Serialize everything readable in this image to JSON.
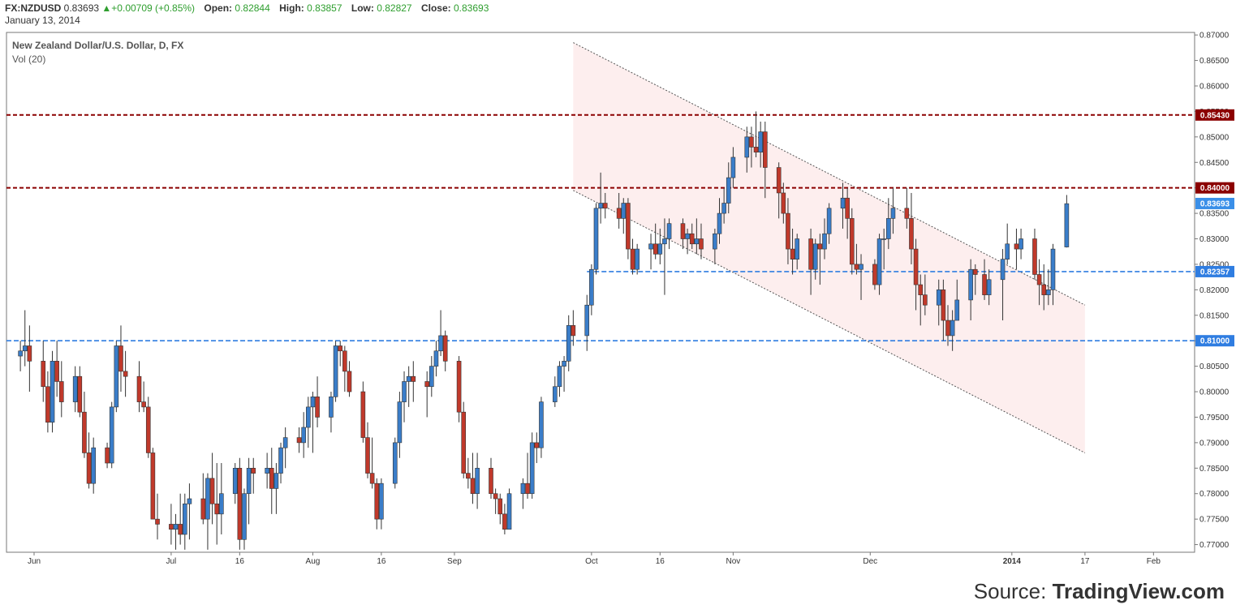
{
  "header": {
    "symbol": "FX:NZDUSD",
    "price": "0.83693",
    "change": "+0.00709 (+0.85%)",
    "open_label": "Open:",
    "open_value": "0.82844",
    "high_label": "High:",
    "high_value": "0.83857",
    "low_label": "Low:",
    "low_value": "0.82827",
    "close_label": "Close:",
    "close_value": "0.83693",
    "date": "January 13, 2014"
  },
  "source": {
    "prefix": "Source: ",
    "brand": "TradingView.com"
  },
  "colors": {
    "up": "#3a7dc9",
    "down": "#c0392b",
    "resistance": "#8b0000",
    "support": "#2f7de1",
    "price_badge": "#3a8fe8",
    "channel_fill": "#fdeeee"
  },
  "chart_data": {
    "type": "candlestick",
    "title": "New Zealand Dollar/U.S. Dollar, D, FX",
    "subtitle": "Vol (20)",
    "ylim": [
      0.7685,
      0.8705
    ],
    "yticks": [
      "0.87000",
      "0.86500",
      "0.86000",
      "0.85500",
      "0.85000",
      "0.84500",
      "0.84000",
      "0.83500",
      "0.83000",
      "0.82500",
      "0.82000",
      "0.81500",
      "0.81000",
      "0.80500",
      "0.80000",
      "0.79500",
      "0.79000",
      "0.78500",
      "0.78000",
      "0.77500",
      "0.77000"
    ],
    "xticks": [
      {
        "label": "Jun",
        "date": "2013-06-01",
        "bold": false
      },
      {
        "label": "Jul",
        "date": "2013-07-01",
        "bold": false
      },
      {
        "label": "16",
        "date": "2013-07-16",
        "bold": false
      },
      {
        "label": "Aug",
        "date": "2013-08-01",
        "bold": false
      },
      {
        "label": "16",
        "date": "2013-08-16",
        "bold": false
      },
      {
        "label": "Sep",
        "date": "2013-09-01",
        "bold": false
      },
      {
        "label": "Oct",
        "date": "2013-10-01",
        "bold": false
      },
      {
        "label": "16",
        "date": "2013-10-16",
        "bold": false
      },
      {
        "label": "Nov",
        "date": "2013-11-01",
        "bold": false
      },
      {
        "label": "Dec",
        "date": "2013-12-01",
        "bold": false
      },
      {
        "label": "2014",
        "date": "2014-01-01",
        "bold": true
      },
      {
        "label": "17",
        "date": "2014-01-17",
        "bold": false
      },
      {
        "label": "Feb",
        "date": "2014-02-01",
        "bold": false
      }
    ],
    "horizontal_levels": [
      {
        "value": 0.8543,
        "label": "0.85430",
        "kind": "resistance"
      },
      {
        "value": 0.84,
        "label": "0.84000",
        "kind": "resistance"
      },
      {
        "value": 0.82357,
        "label": "0.82357",
        "kind": "support",
        "from": "2013-09-30"
      },
      {
        "value": 0.81,
        "label": "0.81000",
        "kind": "support"
      }
    ],
    "last_price": {
      "value": 0.83693,
      "label": "0.83693"
    },
    "channel": {
      "upper": [
        [
          "2013-09-27",
          0.8685
        ],
        [
          "2014-01-17",
          0.817
        ]
      ],
      "lower": [
        [
          "2013-09-27",
          0.8395
        ],
        [
          "2014-01-17",
          0.788
        ]
      ]
    },
    "candles": [
      [
        "2013-05-29",
        0.807,
        0.81,
        0.804,
        0.808
      ],
      [
        "2013-05-30",
        0.808,
        0.816,
        0.805,
        0.809
      ],
      [
        "2013-05-31",
        0.809,
        0.813,
        0.8,
        0.806
      ],
      [
        "2013-06-03",
        0.806,
        0.81,
        0.798,
        0.801
      ],
      [
        "2013-06-04",
        0.801,
        0.804,
        0.792,
        0.794
      ],
      [
        "2013-06-05",
        0.794,
        0.808,
        0.792,
        0.806
      ],
      [
        "2013-06-06",
        0.806,
        0.81,
        0.799,
        0.802
      ],
      [
        "2013-06-07",
        0.802,
        0.806,
        0.795,
        0.798
      ],
      [
        "2013-06-10",
        0.798,
        0.805,
        0.796,
        0.803
      ],
      [
        "2013-06-11",
        0.803,
        0.805,
        0.795,
        0.796
      ],
      [
        "2013-06-12",
        0.796,
        0.8,
        0.787,
        0.788
      ],
      [
        "2013-06-13",
        0.788,
        0.792,
        0.781,
        0.782
      ],
      [
        "2013-06-14",
        0.782,
        0.791,
        0.78,
        0.789
      ],
      [
        "2013-06-17",
        0.789,
        0.79,
        0.785,
        0.786
      ],
      [
        "2013-06-18",
        0.786,
        0.798,
        0.785,
        0.797
      ],
      [
        "2013-06-19",
        0.797,
        0.81,
        0.796,
        0.809
      ],
      [
        "2013-06-20",
        0.809,
        0.813,
        0.8,
        0.804
      ],
      [
        "2013-06-21",
        0.804,
        0.808,
        0.799,
        0.803
      ],
      [
        "2013-06-24",
        0.803,
        0.806,
        0.796,
        0.798
      ],
      [
        "2013-06-25",
        0.798,
        0.802,
        0.796,
        0.797
      ],
      [
        "2013-06-26",
        0.797,
        0.799,
        0.787,
        0.788
      ],
      [
        "2013-06-27",
        0.788,
        0.789,
        0.775,
        0.775
      ],
      [
        "2013-06-28",
        0.775,
        0.78,
        0.771,
        0.774
      ],
      [
        "2013-07-01",
        0.774,
        0.778,
        0.77,
        0.773
      ],
      [
        "2013-07-02",
        0.773,
        0.776,
        0.769,
        0.774
      ],
      [
        "2013-07-03",
        0.774,
        0.78,
        0.77,
        0.772
      ],
      [
        "2013-07-04",
        0.772,
        0.78,
        0.769,
        0.778
      ],
      [
        "2013-07-05",
        0.778,
        0.782,
        0.771,
        0.779
      ],
      [
        "2013-07-08",
        0.779,
        0.784,
        0.774,
        0.775
      ],
      [
        "2013-07-09",
        0.775,
        0.784,
        0.769,
        0.783
      ],
      [
        "2013-07-10",
        0.783,
        0.788,
        0.774,
        0.778
      ],
      [
        "2013-07-11",
        0.778,
        0.786,
        0.77,
        0.776
      ],
      [
        "2013-07-12",
        0.776,
        0.786,
        0.772,
        0.78
      ],
      [
        "2013-07-15",
        0.78,
        0.786,
        0.778,
        0.785
      ],
      [
        "2013-07-16",
        0.785,
        0.787,
        0.769,
        0.771
      ],
      [
        "2013-07-17",
        0.771,
        0.781,
        0.769,
        0.78
      ],
      [
        "2013-07-18",
        0.78,
        0.787,
        0.774,
        0.785
      ],
      [
        "2013-07-19",
        0.785,
        0.787,
        0.78,
        0.784
      ],
      [
        "2013-07-22",
        0.784,
        0.788,
        0.781,
        0.785
      ],
      [
        "2013-07-23",
        0.785,
        0.789,
        0.776,
        0.781
      ],
      [
        "2013-07-24",
        0.781,
        0.786,
        0.776,
        0.784
      ],
      [
        "2013-07-25",
        0.784,
        0.79,
        0.782,
        0.789
      ],
      [
        "2013-07-26",
        0.789,
        0.793,
        0.785,
        0.791
      ],
      [
        "2013-07-29",
        0.791,
        0.793,
        0.788,
        0.79
      ],
      [
        "2013-07-30",
        0.79,
        0.796,
        0.787,
        0.793
      ],
      [
        "2013-07-31",
        0.793,
        0.799,
        0.789,
        0.797
      ],
      [
        "2013-08-01",
        0.797,
        0.8,
        0.788,
        0.799
      ],
      [
        "2013-08-02",
        0.799,
        0.803,
        0.793,
        0.795
      ],
      [
        "2013-08-05",
        0.795,
        0.8,
        0.792,
        0.799
      ],
      [
        "2013-08-06",
        0.799,
        0.81,
        0.798,
        0.809
      ],
      [
        "2013-08-07",
        0.809,
        0.81,
        0.805,
        0.808
      ],
      [
        "2013-08-08",
        0.808,
        0.809,
        0.8,
        0.804
      ],
      [
        "2013-08-09",
        0.804,
        0.806,
        0.799,
        0.8
      ],
      [
        "2013-08-12",
        0.8,
        0.802,
        0.79,
        0.791
      ],
      [
        "2013-08-13",
        0.791,
        0.794,
        0.783,
        0.784
      ],
      [
        "2013-08-14",
        0.784,
        0.791,
        0.781,
        0.782
      ],
      [
        "2013-08-15",
        0.782,
        0.783,
        0.773,
        0.775
      ],
      [
        "2013-08-16",
        0.775,
        0.783,
        0.773,
        0.782
      ],
      [
        "2013-08-19",
        0.782,
        0.791,
        0.781,
        0.79
      ],
      [
        "2013-08-20",
        0.79,
        0.8,
        0.787,
        0.798
      ],
      [
        "2013-08-21",
        0.798,
        0.804,
        0.794,
        0.802
      ],
      [
        "2013-08-22",
        0.802,
        0.805,
        0.797,
        0.803
      ],
      [
        "2013-08-23",
        0.803,
        0.806,
        0.798,
        0.802
      ],
      [
        "2013-08-26",
        0.802,
        0.804,
        0.795,
        0.801
      ],
      [
        "2013-08-27",
        0.801,
        0.807,
        0.799,
        0.805
      ],
      [
        "2013-08-28",
        0.805,
        0.81,
        0.803,
        0.808
      ],
      [
        "2013-08-29",
        0.808,
        0.816,
        0.807,
        0.811
      ],
      [
        "2013-08-30",
        0.811,
        0.812,
        0.804,
        0.806
      ],
      [
        "2013-09-02",
        0.806,
        0.807,
        0.794,
        0.796
      ],
      [
        "2013-09-03",
        0.796,
        0.798,
        0.783,
        0.784
      ],
      [
        "2013-09-04",
        0.784,
        0.787,
        0.781,
        0.783
      ],
      [
        "2013-09-05",
        0.783,
        0.788,
        0.778,
        0.78
      ],
      [
        "2013-09-06",
        0.78,
        0.788,
        0.777,
        0.785
      ],
      [
        "2013-09-09",
        0.785,
        0.787,
        0.779,
        0.78
      ],
      [
        "2013-09-10",
        0.78,
        0.781,
        0.776,
        0.779
      ],
      [
        "2013-09-11",
        0.779,
        0.78,
        0.774,
        0.776
      ],
      [
        "2013-09-12",
        0.776,
        0.778,
        0.772,
        0.773
      ],
      [
        "2013-09-13",
        0.773,
        0.781,
        0.773,
        0.78
      ],
      [
        "2013-09-16",
        0.78,
        0.783,
        0.777,
        0.782
      ],
      [
        "2013-09-17",
        0.782,
        0.788,
        0.779,
        0.78
      ],
      [
        "2013-09-18",
        0.78,
        0.792,
        0.779,
        0.79
      ],
      [
        "2013-09-19",
        0.79,
        0.792,
        0.786,
        0.789
      ],
      [
        "2013-09-20",
        0.789,
        0.799,
        0.787,
        0.798
      ],
      [
        "2013-09-23",
        0.798,
        0.803,
        0.797,
        0.801
      ],
      [
        "2013-09-24",
        0.801,
        0.806,
        0.799,
        0.805
      ],
      [
        "2013-09-25",
        0.805,
        0.807,
        0.8,
        0.806
      ],
      [
        "2013-09-26",
        0.806,
        0.815,
        0.804,
        0.813
      ],
      [
        "2013-09-27",
        0.813,
        0.816,
        0.809,
        0.811
      ],
      [
        "2013-09-30",
        0.811,
        0.819,
        0.808,
        0.817
      ],
      [
        "2013-10-01",
        0.817,
        0.825,
        0.815,
        0.824
      ],
      [
        "2013-10-02",
        0.824,
        0.837,
        0.823,
        0.836
      ],
      [
        "2013-10-03",
        0.836,
        0.843,
        0.833,
        0.837
      ],
      [
        "2013-10-04",
        0.837,
        0.839,
        0.834,
        0.836
      ],
      [
        "2013-10-07",
        0.836,
        0.839,
        0.832,
        0.834
      ],
      [
        "2013-10-08",
        0.834,
        0.838,
        0.831,
        0.837
      ],
      [
        "2013-10-09",
        0.837,
        0.838,
        0.826,
        0.828
      ],
      [
        "2013-10-10",
        0.828,
        0.83,
        0.823,
        0.824
      ],
      [
        "2013-10-11",
        0.824,
        0.829,
        0.823,
        0.828
      ],
      [
        "2013-10-14",
        0.828,
        0.831,
        0.824,
        0.829
      ],
      [
        "2013-10-15",
        0.829,
        0.833,
        0.826,
        0.827
      ],
      [
        "2013-10-16",
        0.827,
        0.832,
        0.825,
        0.829
      ],
      [
        "2013-10-17",
        0.829,
        0.834,
        0.819,
        0.83
      ],
      [
        "2013-10-18",
        0.83,
        0.834,
        0.828,
        0.833
      ],
      [
        "2013-10-21",
        0.833,
        0.834,
        0.828,
        0.83
      ],
      [
        "2013-10-22",
        0.83,
        0.832,
        0.827,
        0.831
      ],
      [
        "2013-10-23",
        0.831,
        0.833,
        0.828,
        0.829
      ],
      [
        "2013-10-24",
        0.829,
        0.834,
        0.827,
        0.83
      ],
      [
        "2013-10-25",
        0.83,
        0.833,
        0.826,
        0.828
      ],
      [
        "2013-10-28",
        0.828,
        0.832,
        0.825,
        0.831
      ],
      [
        "2013-10-29",
        0.831,
        0.838,
        0.829,
        0.835
      ],
      [
        "2013-10-30",
        0.835,
        0.84,
        0.833,
        0.837
      ],
      [
        "2013-10-31",
        0.837,
        0.845,
        0.835,
        0.842
      ],
      [
        "2013-11-01",
        0.842,
        0.848,
        0.84,
        0.846
      ],
      [
        "2013-11-04",
        0.846,
        0.852,
        0.843,
        0.85
      ],
      [
        "2013-11-05",
        0.85,
        0.852,
        0.844,
        0.848
      ],
      [
        "2013-11-06",
        0.848,
        0.855,
        0.846,
        0.847
      ],
      [
        "2013-11-07",
        0.847,
        0.853,
        0.844,
        0.851
      ],
      [
        "2013-11-08",
        0.851,
        0.853,
        0.838,
        0.844
      ],
      [
        "2013-11-11",
        0.844,
        0.845,
        0.834,
        0.839
      ],
      [
        "2013-11-12",
        0.839,
        0.841,
        0.833,
        0.835
      ],
      [
        "2013-11-13",
        0.835,
        0.838,
        0.825,
        0.828
      ],
      [
        "2013-11-14",
        0.828,
        0.832,
        0.823,
        0.826
      ],
      [
        "2013-11-15",
        0.826,
        0.831,
        0.824,
        0.83
      ],
      [
        "2013-11-18",
        0.83,
        0.832,
        0.819,
        0.824
      ],
      [
        "2013-11-19",
        0.824,
        0.83,
        0.822,
        0.829
      ],
      [
        "2013-11-20",
        0.829,
        0.831,
        0.821,
        0.828
      ],
      [
        "2013-11-21",
        0.828,
        0.834,
        0.826,
        0.831
      ],
      [
        "2013-11-22",
        0.831,
        0.837,
        0.829,
        0.836
      ],
      [
        "2013-11-25",
        0.836,
        0.841,
        0.832,
        0.838
      ],
      [
        "2013-11-26",
        0.838,
        0.84,
        0.83,
        0.834
      ],
      [
        "2013-11-27",
        0.834,
        0.836,
        0.823,
        0.825
      ],
      [
        "2013-11-28",
        0.825,
        0.829,
        0.823,
        0.824
      ],
      [
        "2013-11-29",
        0.824,
        0.827,
        0.818,
        0.825
      ],
      [
        "2013-12-02",
        0.825,
        0.826,
        0.82,
        0.821
      ],
      [
        "2013-12-03",
        0.821,
        0.831,
        0.819,
        0.83
      ],
      [
        "2013-12-04",
        0.83,
        0.832,
        0.824,
        0.83
      ],
      [
        "2013-12-05",
        0.83,
        0.838,
        0.828,
        0.834
      ],
      [
        "2013-12-06",
        0.834,
        0.84,
        0.831,
        0.836
      ],
      [
        "2013-12-09",
        0.836,
        0.84,
        0.832,
        0.834
      ],
      [
        "2013-12-10",
        0.834,
        0.839,
        0.825,
        0.828
      ],
      [
        "2013-12-11",
        0.828,
        0.83,
        0.816,
        0.821
      ],
      [
        "2013-12-12",
        0.821,
        0.823,
        0.813,
        0.819
      ],
      [
        "2013-12-13",
        0.819,
        0.823,
        0.815,
        0.817
      ],
      [
        "2013-12-16",
        0.817,
        0.822,
        0.813,
        0.82
      ],
      [
        "2013-12-17",
        0.82,
        0.822,
        0.81,
        0.814
      ],
      [
        "2013-12-18",
        0.814,
        0.817,
        0.809,
        0.811
      ],
      [
        "2013-12-19",
        0.811,
        0.816,
        0.808,
        0.814
      ],
      [
        "2013-12-20",
        0.814,
        0.822,
        0.814,
        0.818
      ],
      [
        "2013-12-23",
        0.818,
        0.826,
        0.814,
        0.824
      ],
      [
        "2013-12-24",
        0.824,
        0.825,
        0.819,
        0.823
      ],
      [
        "2013-12-26",
        0.823,
        0.826,
        0.818,
        0.819
      ],
      [
        "2013-12-27",
        0.819,
        0.824,
        0.817,
        0.822
      ],
      [
        "2013-12-30",
        0.822,
        0.828,
        0.814,
        0.826
      ],
      [
        "2013-12-31",
        0.826,
        0.833,
        0.825,
        0.829
      ],
      [
        "2014-01-02",
        0.829,
        0.832,
        0.824,
        0.828
      ],
      [
        "2014-01-03",
        0.828,
        0.832,
        0.826,
        0.83
      ],
      [
        "2014-01-06",
        0.83,
        0.832,
        0.822,
        0.823
      ],
      [
        "2014-01-07",
        0.823,
        0.826,
        0.817,
        0.821
      ],
      [
        "2014-01-08",
        0.821,
        0.825,
        0.816,
        0.819
      ],
      [
        "2014-01-09",
        0.819,
        0.824,
        0.817,
        0.82
      ],
      [
        "2014-01-10",
        0.82,
        0.829,
        0.817,
        0.828
      ],
      [
        "2014-01-13",
        0.8284,
        0.8386,
        0.8283,
        0.8369
      ]
    ]
  }
}
